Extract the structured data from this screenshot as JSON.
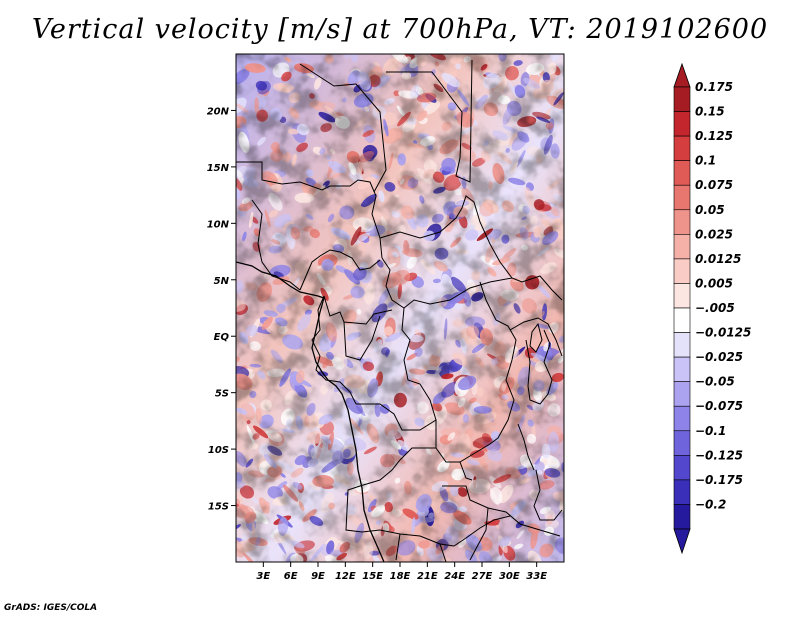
{
  "title": "Vertical velocity [m/s] at 700hPa, VT: 2019102600",
  "credit": "GrADS: IGES/COLA",
  "map": {
    "lon_range": [
      0,
      36
    ],
    "lat_range": [
      -20,
      25
    ],
    "lat_ticks": [
      {
        "value": 20,
        "label": "20N"
      },
      {
        "value": 15,
        "label": "15N"
      },
      {
        "value": 10,
        "label": "10N"
      },
      {
        "value": 5,
        "label": "5N"
      },
      {
        "value": 0,
        "label": "EQ"
      },
      {
        "value": -5,
        "label": "5S"
      },
      {
        "value": -10,
        "label": "10S"
      },
      {
        "value": -15,
        "label": "15S"
      }
    ],
    "lon_ticks": [
      {
        "value": 3,
        "label": "3E"
      },
      {
        "value": 6,
        "label": "6E"
      },
      {
        "value": 9,
        "label": "9E"
      },
      {
        "value": 12,
        "label": "12E"
      },
      {
        "value": 15,
        "label": "15E"
      },
      {
        "value": 18,
        "label": "18E"
      },
      {
        "value": 21,
        "label": "21E"
      },
      {
        "value": 24,
        "label": "24E"
      },
      {
        "value": 27,
        "label": "27E"
      },
      {
        "value": 30,
        "label": "30E"
      },
      {
        "value": 33,
        "label": "33E"
      }
    ]
  },
  "colorbar": {
    "levels": [
      {
        "label": "0.175",
        "color": "#a51c22"
      },
      {
        "label": "0.15",
        "color": "#c3262d"
      },
      {
        "label": "0.125",
        "color": "#d53e3e"
      },
      {
        "label": "0.1",
        "color": "#e05a56"
      },
      {
        "label": "0.075",
        "color": "#e8776f"
      },
      {
        "label": "0.05",
        "color": "#ef948b"
      },
      {
        "label": "0.025",
        "color": "#f5b1a8"
      },
      {
        "label": "0.0125",
        "color": "#f9cdc6"
      },
      {
        "label": "0.005",
        "color": "#fce6e2"
      },
      {
        "label": "−.005",
        "color": "#ffffff"
      },
      {
        "label": "−0.0125",
        "color": "#e4e1fb"
      },
      {
        "label": "−0.025",
        "color": "#c9c3f7"
      },
      {
        "label": "−0.05",
        "color": "#aba3f0"
      },
      {
        "label": "−0.075",
        "color": "#8d83e8"
      },
      {
        "label": "−0.1",
        "color": "#6f64dc"
      },
      {
        "label": "−0.125",
        "color": "#5247cd"
      },
      {
        "label": "−0.175",
        "color": "#3a2fb8"
      },
      {
        "label": "−0.2",
        "color": "#25199d"
      }
    ],
    "top_tip_color": "#a51c22",
    "bottom_tip_color": "#25199d",
    "mid_color": "#ffffff"
  }
}
